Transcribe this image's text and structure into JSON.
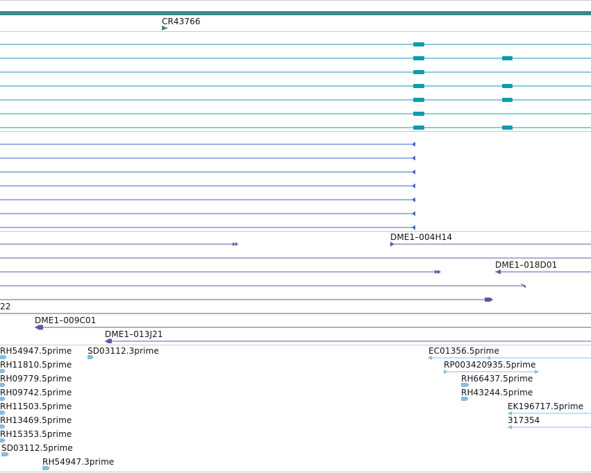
{
  "colors": {
    "gene_teal": "#3a8a8a",
    "transcript_teal": "#0f9bb0",
    "cdna_blue": "#3a64c8",
    "clone_purple": "#6b52a8",
    "est_lightblue": "#88bde0",
    "separator": "#c9c9c9"
  },
  "gene_track": {
    "label": "CR43766"
  },
  "transcripts": {
    "count": 7
  },
  "cdna_matches": {
    "count": 7
  },
  "clones": [
    {
      "label": "DME1–004H14"
    },
    {
      "label": "DME1–018D01"
    },
    {
      "label": "22"
    },
    {
      "label": "DME1–009C01"
    },
    {
      "label": "DME1–013J21"
    }
  ],
  "ests": [
    {
      "label": "RH54947.5prime"
    },
    {
      "label": "SD03112.3prime"
    },
    {
      "label": "EC01356.5prime"
    },
    {
      "label": "RH11810.5prime"
    },
    {
      "label": "RP003420935.5prime"
    },
    {
      "label": "RH09779.5prime"
    },
    {
      "label": "RH66437.5prime"
    },
    {
      "label": "RH09742.5prime"
    },
    {
      "label": "RH43244.5prime"
    },
    {
      "label": "RH11503.5prime"
    },
    {
      "label": "EK196717.5prime"
    },
    {
      "label": "RH13469.5prime"
    },
    {
      "label": "317354"
    },
    {
      "label": "RH15353.5prime"
    },
    {
      "label": "SD03112.5prime"
    },
    {
      "label": "RH54947.3prime"
    }
  ]
}
